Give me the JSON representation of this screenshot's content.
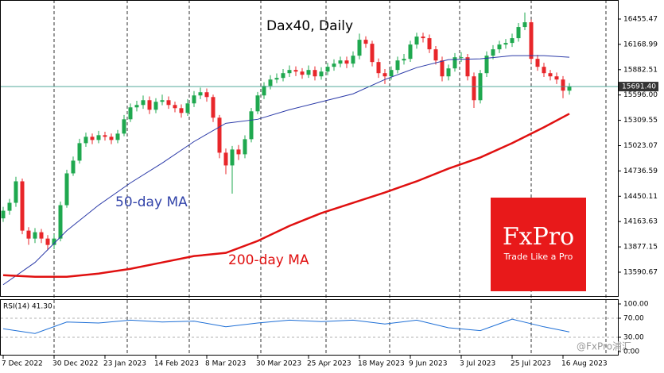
{
  "chart_data": {
    "type": "candlestick",
    "title": "Dax40, Daily",
    "candles": {
      "open": [
        14200,
        14286,
        14376,
        14619,
        14061,
        13971,
        14043,
        13971,
        13899,
        13971,
        14349,
        14709,
        14853,
        15051,
        15123,
        15087,
        15141,
        15123,
        15087,
        15159,
        15321,
        15456,
        15483,
        15537,
        15429,
        15519,
        15537,
        15483,
        15447,
        15393,
        15501,
        15591,
        15627,
        15573,
        15339,
        14943,
        14799,
        14979,
        14925,
        15096,
        15411,
        15591,
        15699,
        15771,
        15789,
        15843,
        15879,
        15861,
        15825,
        15879,
        15807,
        15861,
        15915,
        15951,
        15987,
        15951,
        16041,
        16221,
        16176,
        15969,
        15843,
        15807,
        15879,
        15987,
        16005,
        16167,
        16257,
        16239,
        16113,
        15987,
        15807,
        15897,
        16023,
        16023,
        15807,
        15537,
        15843,
        16041,
        16113,
        16167,
        16185,
        16239,
        16365,
        16419,
        16005,
        15915,
        15843,
        15807,
        15771,
        15645
      ],
      "high": [
        14330,
        14420,
        14670,
        14650,
        14100,
        14090,
        14080,
        14010,
        14020,
        14390,
        14750,
        14900,
        15100,
        15170,
        15160,
        15190,
        15180,
        15160,
        15200,
        15370,
        15500,
        15530,
        15590,
        15580,
        15560,
        15600,
        15580,
        15520,
        15490,
        15550,
        15640,
        15680,
        15670,
        15600,
        15370,
        14990,
        15020,
        15030,
        15140,
        15450,
        15630,
        15740,
        15820,
        15840,
        15890,
        15930,
        15920,
        15900,
        15930,
        15920,
        15910,
        15960,
        16000,
        16030,
        16030,
        16090,
        16290,
        16260,
        16210,
        16010,
        15890,
        15920,
        16030,
        16060,
        16210,
        16300,
        16300,
        16280,
        16150,
        16030,
        15940,
        16070,
        16080,
        16060,
        15850,
        15880,
        16090,
        16160,
        16210,
        16230,
        16290,
        16410,
        16530,
        16450,
        16050,
        15960,
        15880,
        15850,
        15810,
        15730
      ],
      "low": [
        14160,
        14240,
        14330,
        14020,
        13900,
        13920,
        13920,
        13840,
        13850,
        13940,
        14320,
        14680,
        14820,
        15010,
        15040,
        15050,
        15080,
        15040,
        15050,
        15130,
        15290,
        15410,
        15440,
        15380,
        15390,
        15480,
        15440,
        15400,
        15340,
        15360,
        15460,
        15550,
        15520,
        15290,
        14880,
        14700,
        14480,
        14860,
        14880,
        15060,
        15380,
        15550,
        15660,
        15730,
        15750,
        15800,
        15810,
        15780,
        15790,
        15760,
        15770,
        15820,
        15870,
        15910,
        15900,
        15910,
        16000,
        16130,
        15920,
        15790,
        15720,
        15770,
        15840,
        15940,
        15970,
        16120,
        16190,
        16070,
        15940,
        15750,
        15760,
        15860,
        15970,
        15760,
        15450,
        15500,
        15800,
        16000,
        16070,
        16120,
        16140,
        16200,
        16330,
        15960,
        15870,
        15800,
        15760,
        15720,
        15560,
        15600
      ],
      "close": [
        14286,
        14376,
        14619,
        14061,
        13971,
        14043,
        13971,
        13899,
        13971,
        14349,
        14709,
        14853,
        15051,
        15123,
        15087,
        15141,
        15123,
        15087,
        15159,
        15321,
        15456,
        15483,
        15537,
        15429,
        15519,
        15537,
        15483,
        15447,
        15393,
        15501,
        15591,
        15627,
        15573,
        15339,
        14943,
        14799,
        14979,
        14925,
        15096,
        15411,
        15591,
        15699,
        15771,
        15789,
        15843,
        15879,
        15861,
        15825,
        15879,
        15807,
        15861,
        15915,
        15951,
        15987,
        15951,
        16041,
        16221,
        16176,
        15969,
        15843,
        15807,
        15879,
        15987,
        16005,
        16167,
        16257,
        16239,
        16113,
        15987,
        15807,
        15897,
        16023,
        16023,
        15807,
        15537,
        15843,
        16041,
        16113,
        16167,
        16185,
        16239,
        16365,
        16419,
        16005,
        15915,
        15843,
        15807,
        15771,
        15645,
        15691.4
      ],
      "up_color": "#1fa84f",
      "down_color": "#e8262a"
    },
    "series": [
      {
        "name": "50-day MA",
        "color": "#2b3aa8",
        "x": [
          0,
          5,
          10,
          15,
          20,
          25,
          30,
          35,
          40,
          45,
          50,
          55,
          60,
          65,
          70,
          75,
          80,
          85,
          89
        ],
        "values": [
          13449,
          13701,
          14061,
          14349,
          14601,
          14826,
          15069,
          15276,
          15321,
          15429,
          15519,
          15609,
          15771,
          15906,
          15996,
          16005,
          16041,
          16041,
          16023
        ]
      },
      {
        "name": "200-day MA",
        "color": "#e01010",
        "x": [
          0,
          5,
          10,
          15,
          20,
          25,
          30,
          35,
          40,
          45,
          50,
          55,
          60,
          65,
          70,
          75,
          80,
          85,
          89
        ],
        "values": [
          13557,
          13539,
          13539,
          13575,
          13629,
          13701,
          13773,
          13809,
          13944,
          14115,
          14259,
          14376,
          14493,
          14619,
          14763,
          14889,
          15051,
          15231,
          15384
        ]
      }
    ],
    "current_price": {
      "value": 15691.4,
      "label": "15691.40"
    },
    "ylim": [
      13321,
      16671
    ],
    "yticks": [
      16455.47,
      16168.99,
      15882.51,
      {
        "value": 15596,
        "label": "15596.00"
      },
      15309.55,
      15023.07,
      14736.59,
      14450.11,
      14163.63,
      13877.15,
      13590.67
    ],
    "xticks": [
      {
        "value": 0,
        "label": "7 Dec 2022"
      },
      {
        "value": 8,
        "label": "30 Dec 2022"
      },
      {
        "value": 16,
        "label": "23 Jan 2023"
      },
      {
        "value": 24,
        "label": "14 Feb 2023"
      },
      {
        "value": 32,
        "label": "8 Mar 2023"
      },
      {
        "value": 40,
        "label": "30 Mar 2023"
      },
      {
        "value": 48,
        "label": "25 Apr 2023"
      },
      {
        "value": 56,
        "label": "18 May 2023"
      },
      {
        "value": 64,
        "label": "9 Jun 2023"
      },
      {
        "value": 72,
        "label": "3 Jul 2023"
      },
      {
        "value": 80,
        "label": "25 Jul 2023"
      },
      {
        "value": 88,
        "label": "16 Aug 2023"
      }
    ],
    "rsi": {
      "title": "RSI(14) 41.30",
      "color": "#1e6fd6",
      "x": [
        0,
        5,
        10,
        15,
        20,
        25,
        30,
        35,
        40,
        45,
        50,
        55,
        60,
        65,
        70,
        75,
        80,
        85,
        89
      ],
      "values": [
        48,
        38,
        62,
        60,
        66,
        62,
        64,
        52,
        60,
        66,
        63,
        66,
        58,
        66,
        50,
        44,
        68,
        52,
        41.3
      ],
      "ylim": [
        0,
        100
      ],
      "yticks": [
        {
          "value": 100,
          "label": "100.00"
        },
        {
          "value": 70,
          "label": "70.00"
        },
        {
          "value": 30,
          "label": "30.00"
        },
        {
          "value": 0,
          "label": "0.00"
        }
      ]
    },
    "logo": {
      "name": "FxPro",
      "tagline": "Trade Like a Pro"
    },
    "watermark": "@FxPro浦汇"
  }
}
